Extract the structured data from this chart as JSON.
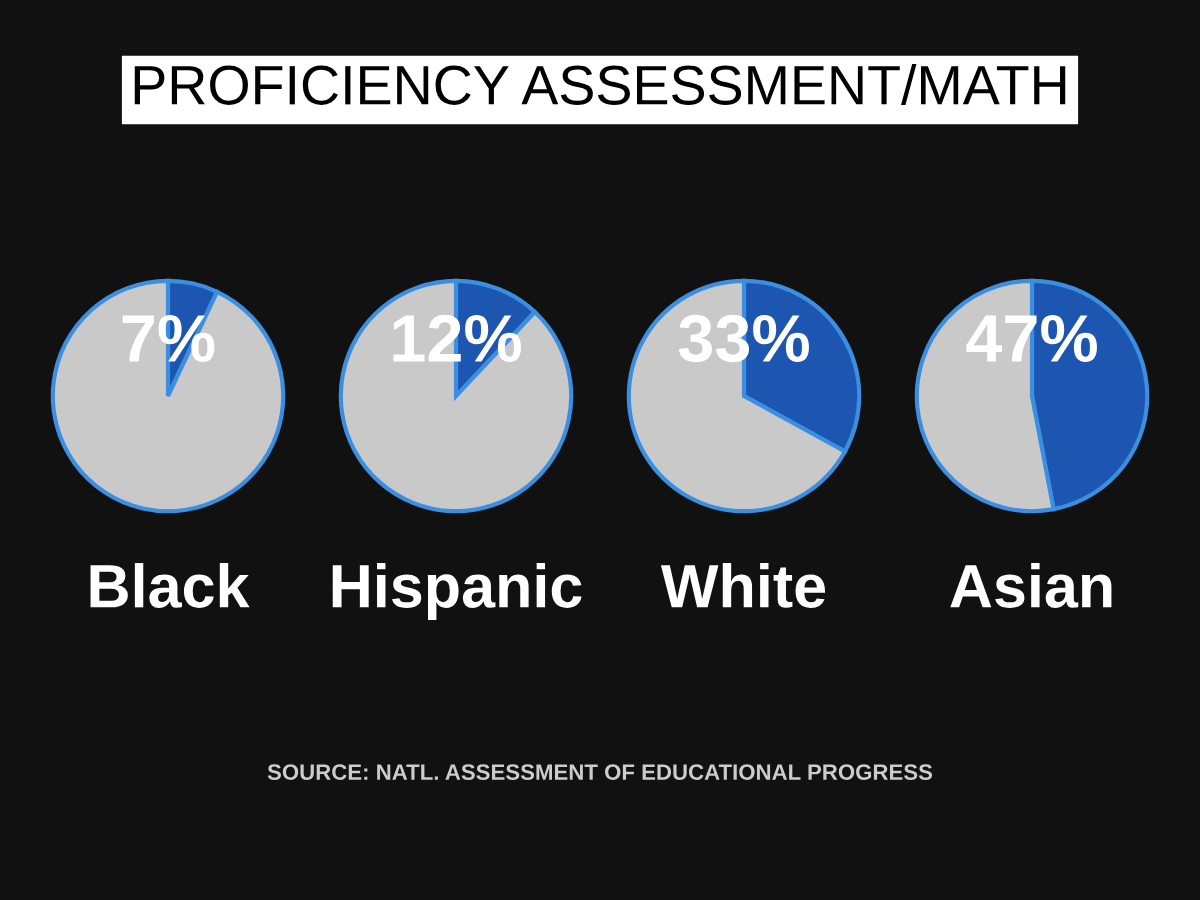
{
  "chart_data": [
    {
      "type": "pie",
      "title": "PROFICIENCY ASSESSMENT/MATH",
      "xlabel": "Black",
      "categories": [
        null,
        null
      ],
      "values": [
        7,
        93
      ],
      "colors": [
        "#1d56b0",
        "#c9c9c9"
      ],
      "value_labels": [
        "7%",
        null
      ],
      "annotations": [
        "SOURCE: NATL. ASSESSMENT OF EDUCATIONAL PROGRESS"
      ]
    },
    {
      "type": "pie",
      "xlabel": "Hispanic",
      "categories": [
        null,
        null
      ],
      "values": [
        12,
        88
      ],
      "colors": [
        "#1d56b0",
        "#c9c9c9"
      ],
      "value_labels": [
        "12%",
        null
      ]
    },
    {
      "type": "pie",
      "xlabel": "White",
      "categories": [
        null,
        null
      ],
      "values": [
        33,
        67
      ],
      "colors": [
        "#1d56b0",
        "#c9c9c9"
      ],
      "value_labels": [
        "33%",
        null
      ]
    },
    {
      "type": "pie",
      "xlabel": "Asian",
      "categories": [
        null,
        null
      ],
      "values": [
        47,
        53
      ],
      "colors": [
        "#1d56b0",
        "#c9c9c9"
      ],
      "value_labels": [
        "47%",
        null
      ]
    }
  ]
}
